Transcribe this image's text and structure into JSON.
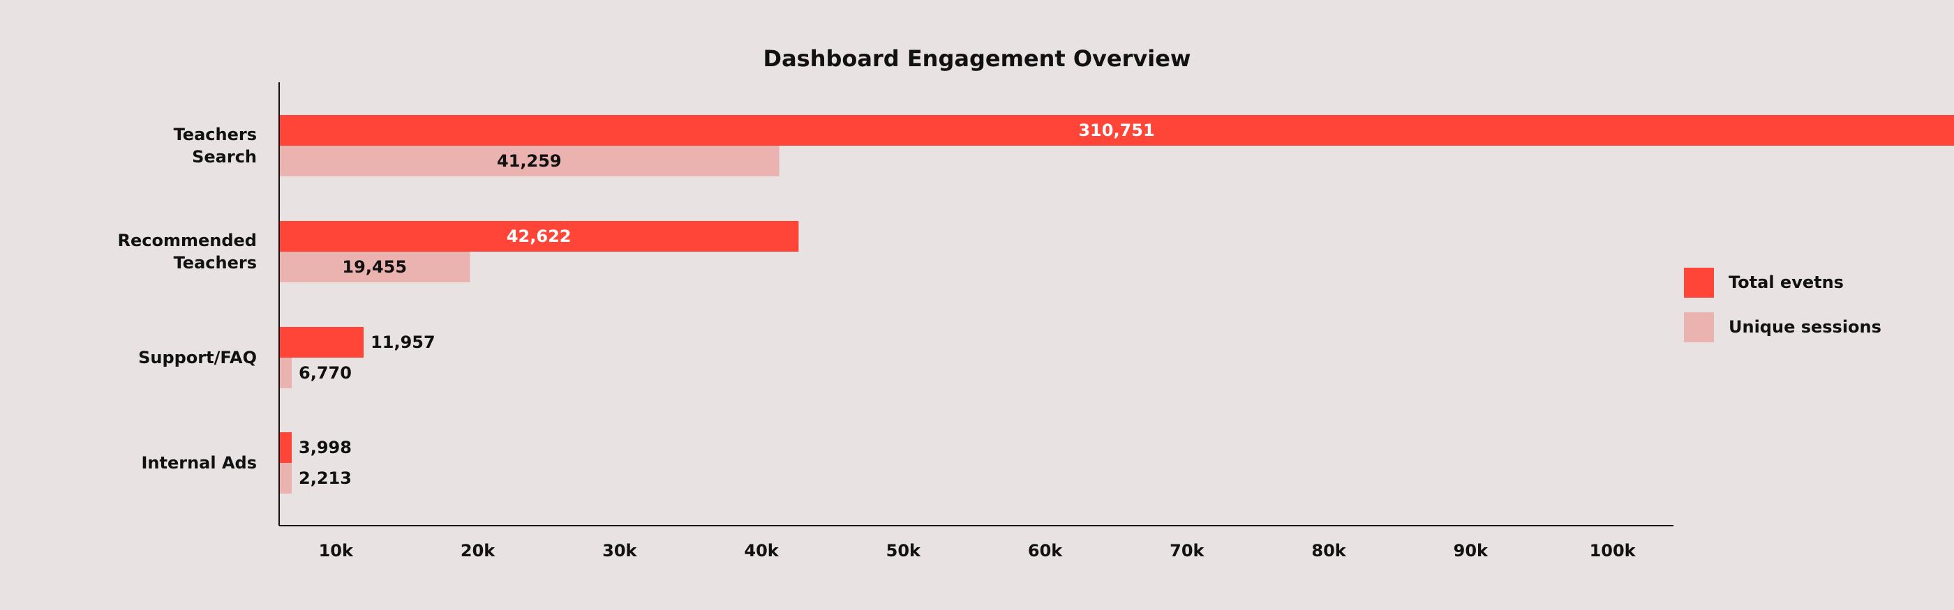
{
  "chart_data": {
    "type": "barh",
    "title": "Dashboard Engagement Overview",
    "categories": [
      "Teachers\nSearch",
      "Recommended\nTeachers",
      "Support/FAQ",
      "Internal Ads"
    ],
    "series": [
      {
        "name": "Total evetns",
        "color": "#ff4438",
        "values": [
          310751,
          42622,
          11957,
          3998
        ],
        "value_labels": [
          "310,751",
          "42,622",
          "11,957",
          "3,998"
        ]
      },
      {
        "name": "Unique sessions",
        "color": "#ebb3b0",
        "values": [
          41259,
          19455,
          6770,
          2213
        ],
        "value_labels": [
          "41,259",
          "19,455",
          "6,770",
          "2,213"
        ]
      }
    ],
    "xlim": [
      6000,
      104300
    ],
    "xticks": [
      {
        "value": 10000,
        "label": "10k"
      },
      {
        "value": 20000,
        "label": "20k"
      },
      {
        "value": 30000,
        "label": "30k"
      },
      {
        "value": 40000,
        "label": "40k"
      },
      {
        "value": 50000,
        "label": "50k"
      },
      {
        "value": 60000,
        "label": "60k"
      },
      {
        "value": 70000,
        "label": "70k"
      },
      {
        "value": 80000,
        "label": "80k"
      },
      {
        "value": 90000,
        "label": "90k"
      },
      {
        "value": 100000,
        "label": "100k"
      }
    ],
    "grid": false,
    "legend": "right"
  }
}
